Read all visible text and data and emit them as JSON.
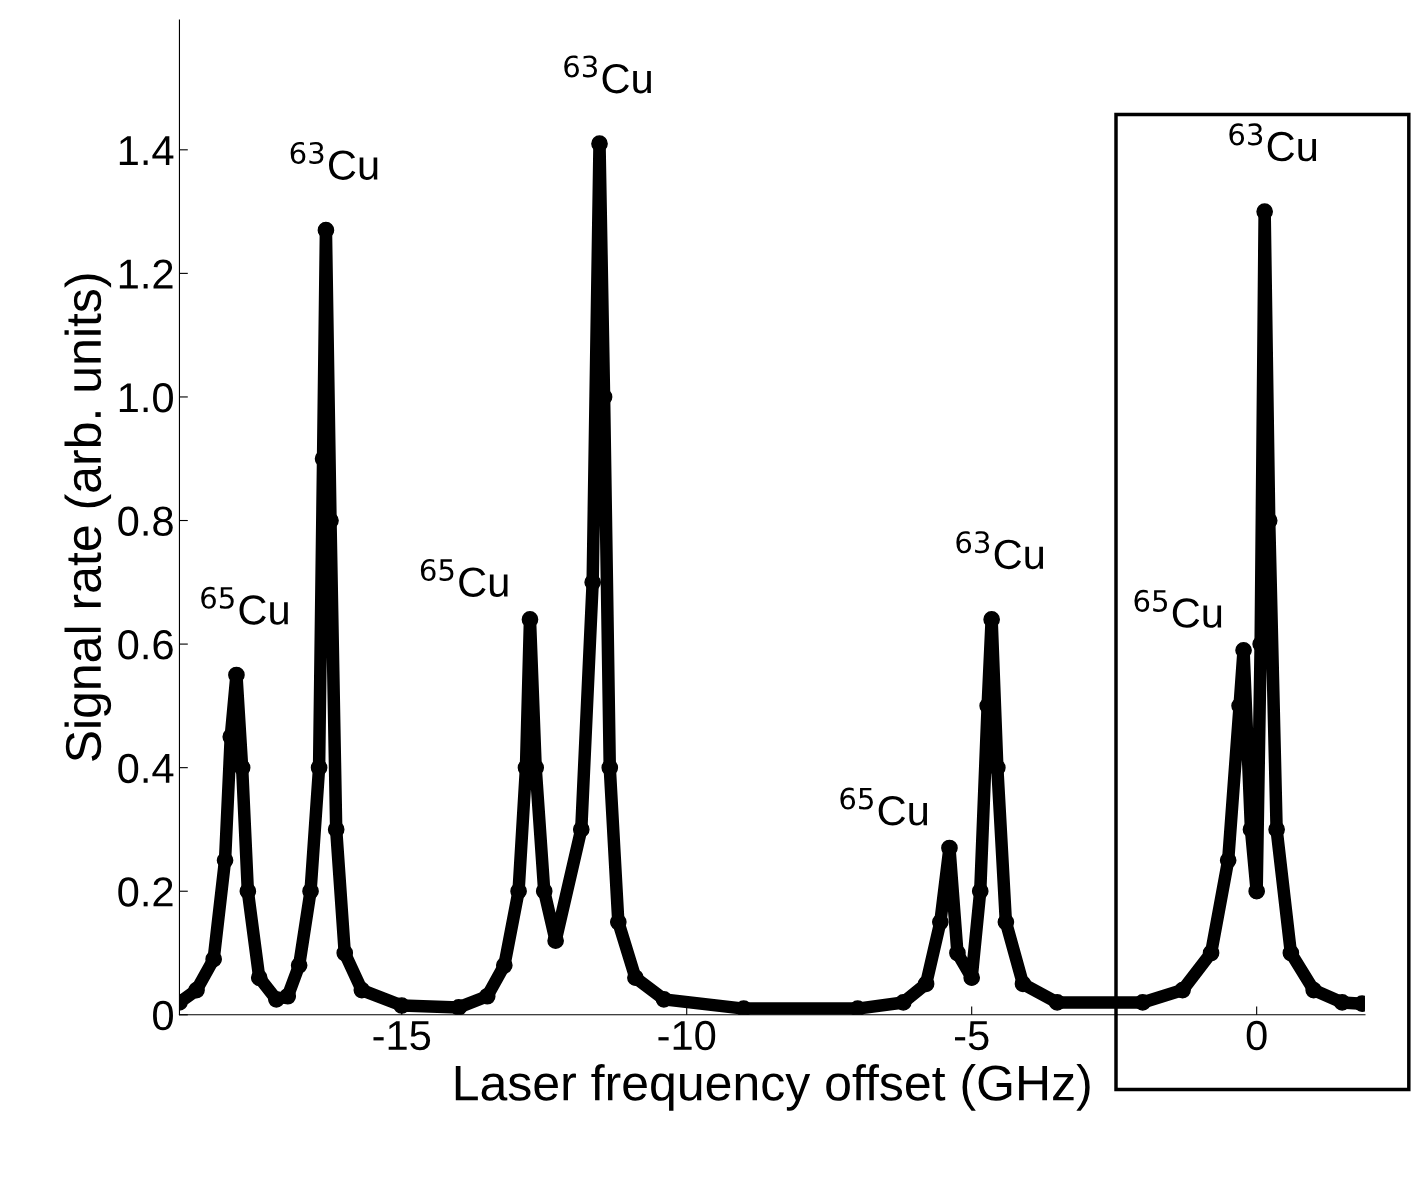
{
  "chart_data": {
    "type": "line",
    "xlabel": "Laser frequency offset (GHz)",
    "ylabel": "Signal rate (arb. units)",
    "xlim": [
      -18.9,
      1.9
    ],
    "xticks": [
      -15,
      -10,
      -5,
      0
    ],
    "ylim": [
      0,
      1.61
    ],
    "yticks": [
      0,
      {
        "value": 0.2,
        "label": "0.2"
      },
      {
        "value": 0.4,
        "label": "0.4"
      },
      {
        "value": 0.6,
        "label": "0.6"
      },
      {
        "value": 0.8,
        "label": "0.8"
      },
      {
        "value": 1.0,
        "label": "1.0"
      },
      {
        "value": 1.2,
        "label": "1.2"
      },
      {
        "value": 1.4,
        "label": "1.4"
      }
    ],
    "marker": "circle",
    "grid": false,
    "legend": false,
    "series": [
      {
        "color": "#000000",
        "x": [
          -18.9,
          -18.6,
          -18.3,
          -18.1,
          -18.0,
          -17.9,
          -17.8,
          -17.7,
          -17.5,
          -17.2,
          -17.0,
          -16.8,
          -16.6,
          -16.45,
          -16.38,
          -16.33,
          -16.25,
          -16.15,
          -16.0,
          -15.7,
          -15.0,
          -14.0,
          -13.5,
          -13.2,
          -12.95,
          -12.82,
          -12.75,
          -12.65,
          -12.5,
          -12.3,
          -11.85,
          -11.65,
          -11.53,
          -11.45,
          -11.35,
          -11.2,
          -10.9,
          -10.4,
          -9.0,
          -7.0,
          -6.2,
          -5.8,
          -5.55,
          -5.39,
          -5.25,
          -5.0,
          -4.85,
          -4.72,
          -4.65,
          -4.55,
          -4.4,
          -4.1,
          -3.5,
          -2.0,
          -1.3,
          -0.8,
          -0.5,
          -0.3,
          -0.23,
          -0.1,
          0.0,
          0.07,
          0.14,
          0.22,
          0.35,
          0.6,
          1.0,
          1.5,
          1.85
        ],
        "values": [
          0.02,
          0.04,
          0.09,
          0.25,
          0.45,
          0.55,
          0.4,
          0.2,
          0.06,
          0.025,
          0.03,
          0.08,
          0.2,
          0.4,
          0.9,
          1.27,
          0.8,
          0.3,
          0.1,
          0.04,
          0.015,
          0.012,
          0.03,
          0.08,
          0.2,
          0.4,
          0.64,
          0.4,
          0.2,
          0.12,
          0.3,
          0.7,
          1.41,
          1.0,
          0.4,
          0.15,
          0.06,
          0.025,
          0.01,
          0.01,
          0.02,
          0.05,
          0.15,
          0.27,
          0.1,
          0.06,
          0.2,
          0.5,
          0.64,
          0.4,
          0.15,
          0.05,
          0.02,
          0.02,
          0.04,
          0.1,
          0.25,
          0.5,
          0.59,
          0.3,
          0.2,
          0.6,
          1.3,
          0.8,
          0.3,
          0.1,
          0.04,
          0.02,
          0.018
        ]
      }
    ],
    "annotations": [
      {
        "text": "$^{65}$Cu",
        "x": -17.9,
        "y": 0.55
      },
      {
        "text": "$^{63}$Cu",
        "x": -16.33,
        "y": 1.27
      },
      {
        "text": "$^{65}$Cu",
        "x": -12.75,
        "y": 0.64
      },
      {
        "text": "$^{63}$Cu",
        "x": -11.53,
        "y": 1.41
      },
      {
        "text": "$^{65}$Cu",
        "x": -5.39,
        "y": 0.27
      },
      {
        "text": "$^{63}$Cu",
        "x": -4.65,
        "y": 0.64
      },
      {
        "text": "$^{65}$Cu",
        "x": -0.23,
        "y": 0.59
      },
      {
        "text": "$^{63}$Cu",
        "x": 0.14,
        "y": 1.3
      }
    ]
  }
}
